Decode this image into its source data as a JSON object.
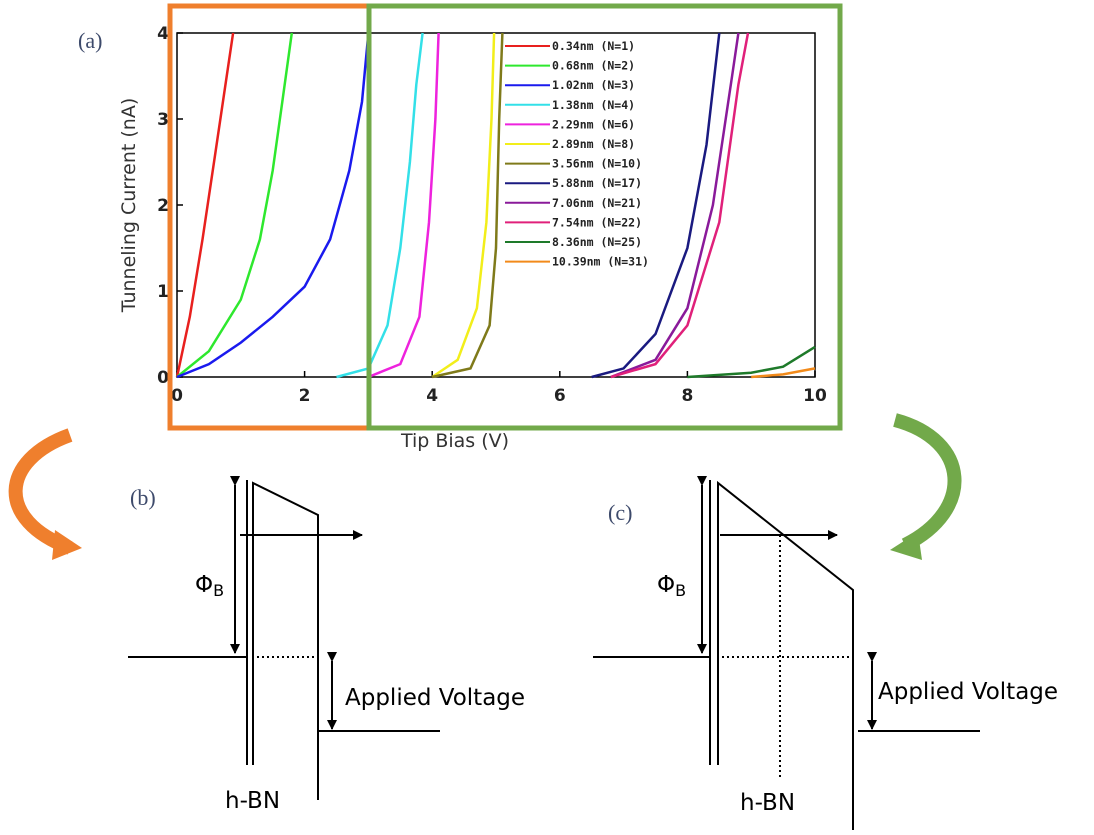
{
  "chart_data": {
    "type": "line",
    "panel_label": "(a)",
    "x_label": "Tip Bias (V)",
    "y_label": "Tunneling Current (nA)",
    "xlim": [
      0,
      10
    ],
    "ylim": [
      0,
      4
    ],
    "xticks": [
      0,
      2,
      4,
      6,
      8,
      10
    ],
    "yticks": [
      0,
      1,
      2,
      3,
      4
    ],
    "series": [
      {
        "name": "0.34nm (N=1)",
        "color": "#e8201e",
        "x": [
          0,
          0.2,
          0.4,
          0.6,
          0.8,
          0.88
        ],
        "values": [
          0,
          0.7,
          1.6,
          2.6,
          3.6,
          4
        ]
      },
      {
        "name": "0.68nm (N=2)",
        "color": "#2ee82e",
        "x": [
          0,
          0.5,
          1,
          1.3,
          1.5,
          1.65,
          1.8
        ],
        "values": [
          0,
          0.3,
          0.9,
          1.6,
          2.4,
          3.2,
          4
        ]
      },
      {
        "name": "1.02nm (N=3)",
        "color": "#1a1aee",
        "x": [
          0,
          0.5,
          1,
          1.5,
          2,
          2.4,
          2.7,
          2.9,
          3.0
        ],
        "values": [
          0,
          0.15,
          0.4,
          0.7,
          1.05,
          1.6,
          2.4,
          3.2,
          4
        ]
      },
      {
        "name": "1.38nm (N=4)",
        "color": "#33e0e8",
        "x": [
          2.5,
          3,
          3.3,
          3.5,
          3.65,
          3.75,
          3.85
        ],
        "values": [
          0,
          0.1,
          0.6,
          1.5,
          2.5,
          3.4,
          4
        ]
      },
      {
        "name": "2.29nm (N=6)",
        "color": "#ee22dd",
        "x": [
          3,
          3.5,
          3.8,
          3.95,
          4.05,
          4.1
        ],
        "values": [
          0,
          0.15,
          0.7,
          1.8,
          3,
          4
        ]
      },
      {
        "name": "2.89nm (N=8)",
        "color": "#f2ee1a",
        "x": [
          4,
          4.4,
          4.7,
          4.85,
          4.93,
          4.97
        ],
        "values": [
          0,
          0.2,
          0.8,
          1.8,
          3,
          4
        ]
      },
      {
        "name": "3.56nm (N=10)",
        "color": "#7f7a1a",
        "x": [
          4,
          4.6,
          4.9,
          5.0,
          5.05,
          5.1
        ],
        "values": [
          0,
          0.1,
          0.6,
          1.5,
          3,
          4
        ]
      },
      {
        "name": "5.88nm (N=17)",
        "color": "#1a1a80",
        "x": [
          6.5,
          7,
          7.5,
          8,
          8.3,
          8.5
        ],
        "values": [
          0,
          0.1,
          0.5,
          1.5,
          2.7,
          4
        ]
      },
      {
        "name": "7.06nm (N=21)",
        "color": "#8a1a9a",
        "x": [
          6.8,
          7.5,
          8,
          8.4,
          8.7,
          8.8
        ],
        "values": [
          0,
          0.2,
          0.8,
          2,
          3.5,
          4
        ]
      },
      {
        "name": "7.54nm (N=22)",
        "color": "#e0207a",
        "x": [
          6.8,
          7.5,
          8,
          8.5,
          8.8,
          8.95
        ],
        "values": [
          0,
          0.15,
          0.6,
          1.8,
          3.4,
          4
        ]
      },
      {
        "name": "8.36nm (N=25)",
        "color": "#1e7a2a",
        "x": [
          8,
          9,
          9.5,
          10
        ],
        "values": [
          0,
          0.05,
          0.12,
          0.35
        ]
      },
      {
        "name": "10.39nm (N=31)",
        "color": "#f28a1a",
        "x": [
          9,
          9.5,
          10
        ],
        "values": [
          0,
          0.03,
          0.1
        ]
      }
    ]
  },
  "diagrams": [
    {
      "label": "(b)",
      "phi": "Φ",
      "phi_sub": "B",
      "applied": "Applied Voltage",
      "material": "h-BN"
    },
    {
      "label": "(c)",
      "phi": "Φ",
      "phi_sub": "B",
      "applied": "Applied Voltage",
      "material": "h-BN"
    }
  ]
}
